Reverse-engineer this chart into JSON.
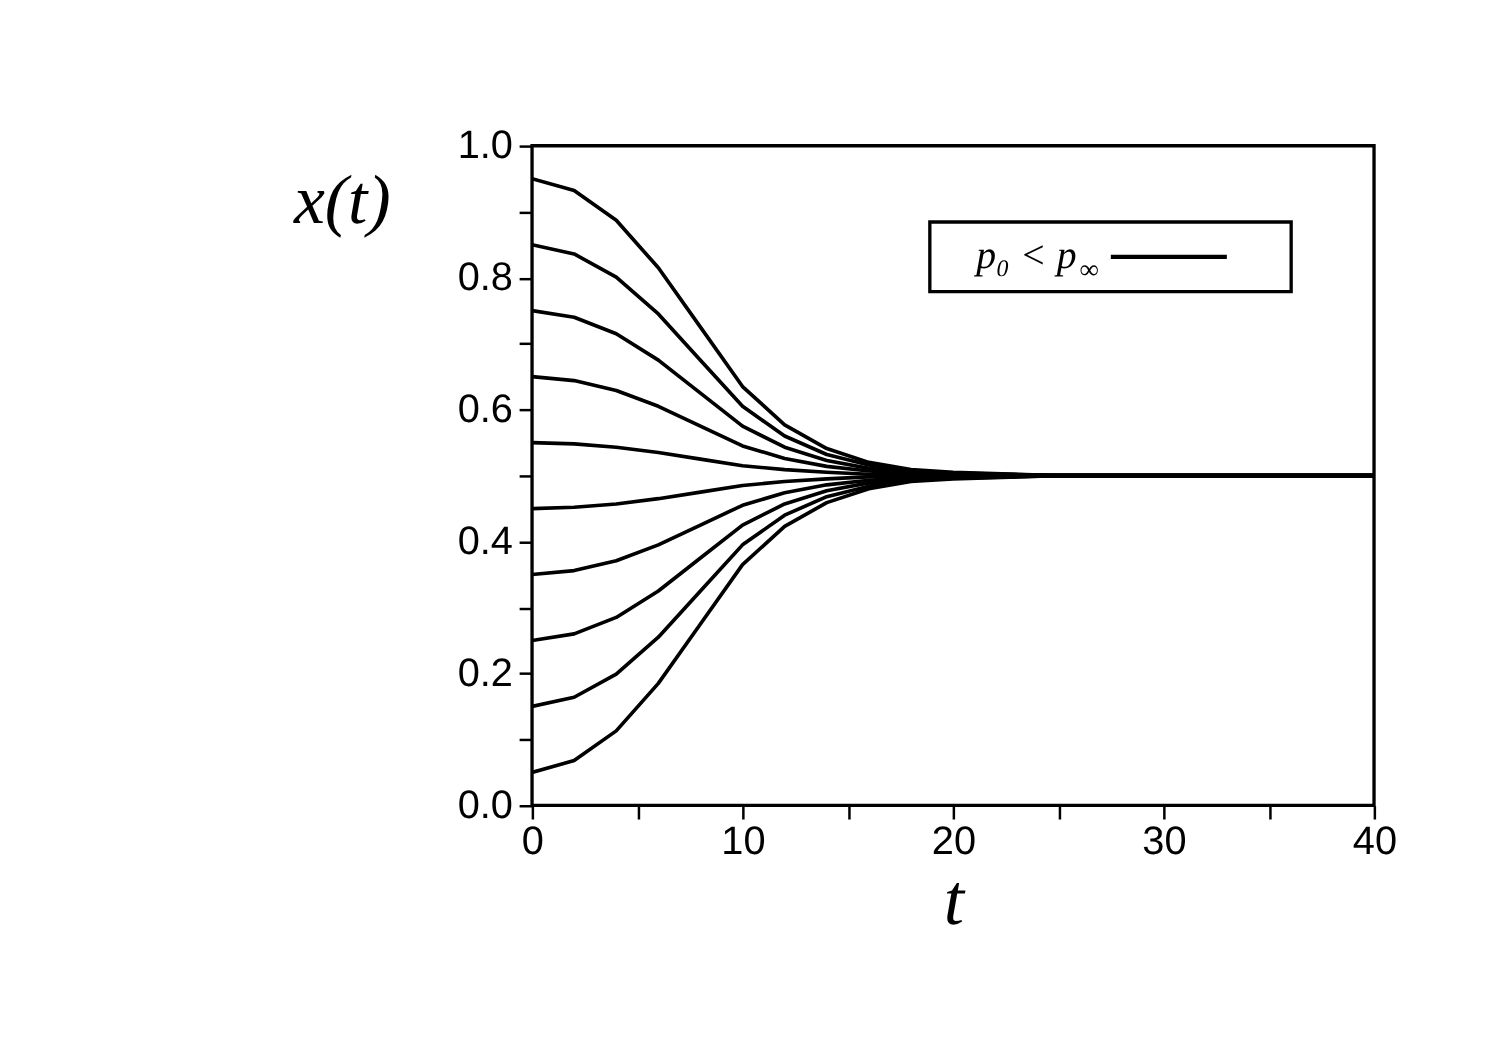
{
  "chart_data": {
    "type": "line",
    "xlabel": "t",
    "ylabel": "x(t)",
    "x": [
      0,
      2,
      4,
      6,
      8,
      10,
      12,
      14,
      16,
      18,
      20,
      25,
      30,
      40
    ],
    "series": [
      {
        "name": "p₀ < p$_{∞}$",
        "color": "#000000",
        "values": [
          0.95,
          0.932,
          0.887,
          0.815,
          0.725,
          0.635,
          0.577,
          0.541,
          0.52,
          0.509,
          0.505,
          0.5,
          0.5,
          0.5
        ]
      },
      {
        "color": "#000000",
        "values": [
          0.85,
          0.836,
          0.801,
          0.745,
          0.675,
          0.605,
          0.56,
          0.532,
          0.516,
          0.507,
          0.504,
          0.5,
          0.5,
          0.5
        ]
      },
      {
        "color": "#000000",
        "values": [
          0.75,
          0.74,
          0.715,
          0.675,
          0.625,
          0.575,
          0.543,
          0.523,
          0.511,
          0.505,
          0.503,
          0.5,
          0.5,
          0.5
        ]
      },
      {
        "color": "#000000",
        "values": [
          0.65,
          0.644,
          0.629,
          0.605,
          0.575,
          0.545,
          0.526,
          0.514,
          0.507,
          0.503,
          0.502,
          0.5,
          0.5,
          0.5
        ]
      },
      {
        "color": "#000000",
        "values": [
          0.55,
          0.548,
          0.543,
          0.535,
          0.525,
          0.515,
          0.509,
          0.505,
          0.502,
          0.501,
          0.5,
          0.5,
          0.5,
          0.5
        ]
      },
      {
        "color": "#000000",
        "values": [
          0.45,
          0.452,
          0.457,
          0.465,
          0.475,
          0.485,
          0.491,
          0.495,
          0.498,
          0.499,
          0.5,
          0.5,
          0.5,
          0.5
        ]
      },
      {
        "color": "#000000",
        "values": [
          0.35,
          0.356,
          0.371,
          0.395,
          0.425,
          0.455,
          0.474,
          0.486,
          0.493,
          0.497,
          0.498,
          0.5,
          0.5,
          0.5
        ]
      },
      {
        "color": "#000000",
        "values": [
          0.25,
          0.26,
          0.285,
          0.325,
          0.375,
          0.425,
          0.457,
          0.477,
          0.489,
          0.495,
          0.497,
          0.5,
          0.5,
          0.5
        ]
      },
      {
        "color": "#000000",
        "values": [
          0.15,
          0.164,
          0.199,
          0.255,
          0.325,
          0.395,
          0.44,
          0.468,
          0.484,
          0.493,
          0.496,
          0.5,
          0.5,
          0.5
        ]
      },
      {
        "color": "#000000",
        "values": [
          0.05,
          0.068,
          0.113,
          0.185,
          0.275,
          0.365,
          0.423,
          0.459,
          0.48,
          0.491,
          0.495,
          0.5,
          0.5,
          0.5
        ]
      }
    ],
    "xlim": [
      0,
      40
    ],
    "xticks": [
      0,
      {
        "value": 5,
        "label": null
      },
      10,
      {
        "value": 15,
        "label": null
      },
      20,
      {
        "value": 25,
        "label": null
      },
      30,
      {
        "value": 35,
        "label": null
      },
      40
    ],
    "ylim": [
      0,
      1
    ],
    "yticks": [
      {
        "value": 0,
        "label": "0.0"
      },
      {
        "value": 0.1,
        "label": null
      },
      {
        "value": 0.2,
        "label": "0.2"
      },
      {
        "value": 0.3,
        "label": null
      },
      {
        "value": 0.4,
        "label": "0.4"
      },
      {
        "value": 0.5,
        "label": null
      },
      {
        "value": 0.6,
        "label": "0.6"
      },
      {
        "value": 0.7,
        "label": null
      },
      {
        "value": 0.8,
        "label": "0.8"
      },
      {
        "value": 0.9,
        "label": null
      },
      {
        "value": 1.0,
        "label": "1.0"
      }
    ],
    "legend": "top right",
    "grid": false,
    "marker": "none",
    "line_style": "solid"
  }
}
